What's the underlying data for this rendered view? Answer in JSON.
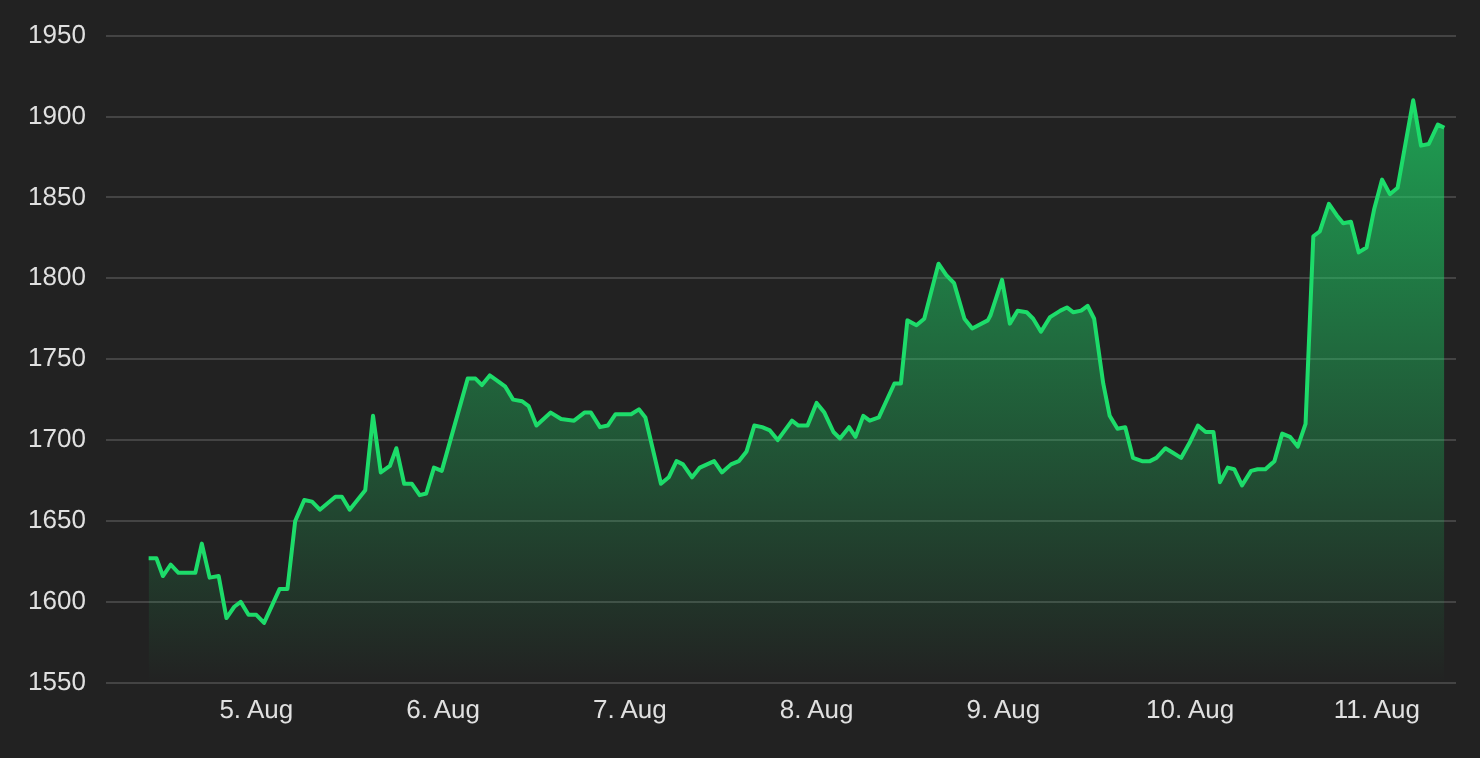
{
  "chart_data": {
    "type": "area",
    "x": [
      "--08-04T10:10",
      "--08-04T11:10",
      "--08-04T12:00",
      "--08-04T13:00",
      "--08-04T14:00",
      "--08-04T16:10",
      "--08-04T17:00",
      "--08-04T18:00",
      "--08-04T19:10",
      "--08-04T20:10",
      "--08-04T21:10",
      "--08-04T22:00",
      "--08-04T23:00",
      "--08-05T00:00",
      "--08-05T01:00",
      "--08-05T03:00",
      "--08-05T04:00",
      "--08-05T05:00",
      "--08-05T06:10",
      "--08-05T07:10",
      "--08-05T08:10",
      "--08-05T10:10",
      "--08-05T11:00",
      "--08-05T12:00",
      "--08-05T14:00",
      "--08-05T15:00",
      "--08-05T16:00",
      "--08-05T17:10",
      "--08-05T18:00",
      "--08-05T19:00",
      "--08-05T20:00",
      "--08-05T21:00",
      "--08-05T21:50",
      "--08-05T22:50",
      "--08-05T23:50",
      "--08-06T03:10",
      "--08-06T04:10",
      "--08-06T05:00",
      "--08-06T06:00",
      "--08-06T07:10",
      "--08-06T08:00",
      "--08-06T09:00",
      "--08-06T10:10",
      "--08-06T11:00",
      "--08-06T12:00",
      "--08-06T13:50",
      "--08-06T15:10",
      "--08-06T16:50",
      "--08-06T18:10",
      "--08-06T19:00",
      "--08-06T20:10",
      "--08-06T21:10",
      "--08-06T22:10",
      "--08-07T00:10",
      "--08-07T01:10",
      "--08-07T02:00",
      "--08-07T04:00",
      "--08-07T05:00",
      "--08-07T06:00",
      "--08-07T06:50",
      "--08-07T08:00",
      "--08-07T09:00",
      "--08-07T10:50",
      "--08-07T11:50",
      "--08-07T13:00",
      "--08-07T14:00",
      "--08-07T15:00",
      "--08-07T16:00",
      "--08-07T17:00",
      "--08-07T18:00",
      "--08-07T19:00",
      "--08-07T20:50",
      "--08-07T21:40",
      "--08-07T22:50",
      "--08-08T00:00",
      "--08-08T01:00",
      "--08-08T02:10",
      "--08-08T03:00",
      "--08-08T04:10",
      "--08-08T05:00",
      "--08-08T06:00",
      "--08-08T06:50",
      "--08-08T08:00",
      "--08-08T10:00",
      "--08-08T10:50",
      "--08-08T11:40",
      "--08-08T12:50",
      "--08-08T13:50",
      "--08-08T15:40",
      "--08-08T16:40",
      "--08-08T17:40",
      "--08-08T19:00",
      "--08-08T20:00",
      "--08-08T22:00",
      "--08-08T22:20",
      "--08-08T23:50",
      "--08-09T00:50",
      "--08-09T01:50",
      "--08-09T03:00",
      "--08-09T03:50",
      "--08-09T04:50",
      "--08-09T06:00",
      "--08-09T07:20",
      "--08-09T08:10",
      "--08-09T09:00",
      "--08-09T10:00",
      "--08-09T10:50",
      "--08-09T11:40",
      "--08-09T12:50",
      "--08-09T13:40",
      "--08-09T14:40",
      "--08-09T15:40",
      "--08-09T16:40",
      "--08-09T17:50",
      "--08-09T18:50",
      "--08-09T19:40",
      "--08-09T20:50",
      "--08-09T21:50",
      "--08-09T22:50",
      "--08-10T00:00",
      "--08-10T01:00",
      "--08-10T02:00",
      "--08-10T03:00",
      "--08-10T03:50",
      "--08-10T04:50",
      "--08-10T05:40",
      "--08-10T06:40",
      "--08-10T07:50",
      "--08-10T08:40",
      "--08-10T09:40",
      "--08-10T10:50",
      "--08-10T11:50",
      "--08-10T12:50",
      "--08-10T13:50",
      "--08-10T14:50",
      "--08-10T15:50",
      "--08-10T16:40",
      "--08-10T17:50",
      "--08-10T18:50",
      "--08-10T19:40",
      "--08-10T20:40",
      "--08-10T21:40",
      "--08-10T22:40",
      "--08-10T23:40",
      "--08-11T00:40",
      "--08-11T01:40",
      "--08-11T02:40",
      "--08-11T04:40",
      "--08-11T05:40",
      "--08-11T06:40",
      "--08-11T07:50",
      "--08-11T08:40"
    ],
    "series": [
      {
        "color": "#1ddc6a",
        "values": [
          1627,
          1627,
          1616,
          1623,
          1618,
          1618,
          1636,
          1615,
          1616,
          1590,
          1597,
          1600,
          1592,
          1592,
          1587,
          1608,
          1608,
          1650,
          1663,
          1662,
          1657,
          1665,
          1665,
          1657,
          1669,
          1715,
          1680,
          1684,
          1695,
          1673,
          1673,
          1666,
          1667,
          1683,
          1681,
          1738,
          1738,
          1734,
          1740,
          1736,
          1733,
          1725,
          1724,
          1721,
          1709,
          1717,
          1713,
          1712,
          1717,
          1717,
          1708,
          1709,
          1716,
          1716,
          1719,
          1714,
          1673,
          1677,
          1687,
          1685,
          1677,
          1683,
          1687,
          1680,
          1685,
          1687,
          1693,
          1709,
          1708,
          1706,
          1700,
          1712,
          1709,
          1709,
          1723,
          1717,
          1705,
          1701,
          1708,
          1702,
          1715,
          1712,
          1714,
          1735,
          1735,
          1774,
          1771,
          1775,
          1809,
          1802,
          1797,
          1775,
          1769,
          1774,
          1777,
          1799,
          1772,
          1780,
          1779,
          1775,
          1767,
          1776,
          1780,
          1782,
          1779,
          1780,
          1783,
          1775,
          1735,
          1715,
          1707,
          1708,
          1689,
          1687,
          1687,
          1689,
          1695,
          1692,
          1689,
          1699,
          1709,
          1705,
          1705,
          1674,
          1683,
          1682,
          1672,
          1681,
          1682,
          1682,
          1687,
          1704,
          1702,
          1696,
          1710,
          1826,
          1829,
          1846,
          1839,
          1834,
          1835,
          1816,
          1819,
          1843,
          1861,
          1852,
          1856,
          1910,
          1882,
          1883,
          1895,
          1893
        ]
      }
    ],
    "xlim": [
      "--08-04T04:40",
      "--08-11T10:10"
    ],
    "xticks": [
      {
        "value": "--08-05",
        "label": "5. Aug"
      },
      {
        "value": "--08-06",
        "label": "6. Aug"
      },
      {
        "value": "--08-07",
        "label": "7. Aug"
      },
      {
        "value": "--08-08",
        "label": "8. Aug"
      },
      {
        "value": "--08-09",
        "label": "9. Aug"
      },
      {
        "value": "--08-10",
        "label": "10. Aug"
      },
      {
        "value": "--08-11",
        "label": "11. Aug"
      }
    ],
    "ylim": [
      1550,
      1950
    ],
    "yticks": [
      1550,
      1600,
      1650,
      1700,
      1750,
      1800,
      1850,
      1900,
      1950
    ],
    "grid": "y",
    "legend": false,
    "marker": "none",
    "line_style": "solid"
  }
}
